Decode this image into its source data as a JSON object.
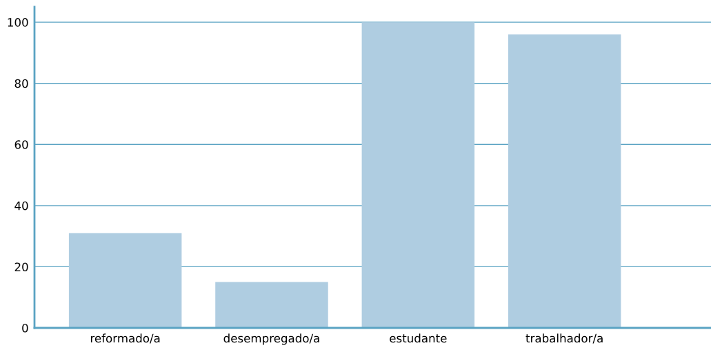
{
  "chart_data": {
    "type": "bar",
    "categories": [
      "reformado/a",
      "desempregado/a",
      "estudante",
      "trabalhador/a"
    ],
    "values": [
      31,
      15,
      100,
      96
    ],
    "color": "#afcde1",
    "ylim": [
      0,
      105
    ],
    "yticks": [
      0,
      20,
      40,
      60,
      80,
      100
    ],
    "grid": "y"
  }
}
